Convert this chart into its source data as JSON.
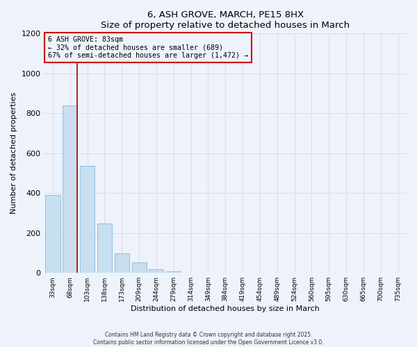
{
  "title": "6, ASH GROVE, MARCH, PE15 8HX",
  "subtitle": "Size of property relative to detached houses in March",
  "xlabel": "Distribution of detached houses by size in March",
  "ylabel": "Number of detached properties",
  "bar_labels": [
    "33sqm",
    "68sqm",
    "103sqm",
    "138sqm",
    "173sqm",
    "209sqm",
    "244sqm",
    "279sqm",
    "314sqm",
    "349sqm",
    "384sqm",
    "419sqm",
    "454sqm",
    "489sqm",
    "524sqm",
    "560sqm",
    "595sqm",
    "630sqm",
    "665sqm",
    "700sqm",
    "735sqm"
  ],
  "bar_values": [
    390,
    840,
    535,
    248,
    98,
    52,
    18,
    8,
    2,
    0,
    0,
    0,
    0,
    0,
    0,
    0,
    0,
    0,
    0,
    0,
    0
  ],
  "bar_color": "#c8dff0",
  "bar_edgecolor": "#8ab8d8",
  "background_color": "#eef2fb",
  "grid_color": "#d8dff0",
  "vline_x": 1.43,
  "vline_color": "#aa0000",
  "annotation_title": "6 ASH GROVE: 83sqm",
  "annotation_line1": "← 32% of detached houses are smaller (689)",
  "annotation_line2": "67% of semi-detached houses are larger (1,472) →",
  "annotation_box_color": "#cc0000",
  "ylim": [
    0,
    1200
  ],
  "yticks": [
    0,
    200,
    400,
    600,
    800,
    1000,
    1200
  ],
  "footer1": "Contains HM Land Registry data © Crown copyright and database right 2025.",
  "footer2": "Contains public sector information licensed under the Open Government Licence v3.0."
}
